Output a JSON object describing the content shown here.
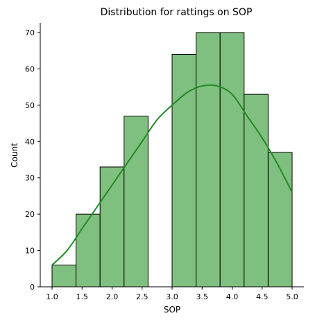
{
  "chart_data": {
    "type": "bar",
    "title": "Distribution for rattings on SOP",
    "xlabel": "SOP",
    "ylabel": "Count",
    "xlim": [
      1.0,
      5.0
    ],
    "ylim": [
      0,
      70
    ],
    "xticks": [
      1.0,
      1.5,
      2.0,
      2.5,
      3.0,
      3.5,
      4.0,
      4.5,
      5.0
    ],
    "xtick_labels": [
      "1.0",
      "1.5",
      "2.0",
      "2.5",
      "3.0",
      "3.5",
      "4.0",
      "4.5",
      "5.0"
    ],
    "yticks": [
      0,
      10,
      20,
      30,
      40,
      50,
      60,
      70
    ],
    "ytick_labels": [
      "0",
      "10",
      "20",
      "30",
      "40",
      "50",
      "60",
      "70"
    ],
    "bins": [
      {
        "x0": 1.0,
        "x1": 1.4,
        "count": 6
      },
      {
        "x0": 1.4,
        "x1": 1.8,
        "count": 20
      },
      {
        "x0": 1.8,
        "x1": 2.2,
        "count": 33
      },
      {
        "x0": 2.2,
        "x1": 2.6,
        "count": 47
      },
      {
        "x0": 2.6,
        "x1": 3.0,
        "count": 0
      },
      {
        "x0": 3.0,
        "x1": 3.4,
        "count": 64
      },
      {
        "x0": 3.4,
        "x1": 3.8,
        "count": 70
      },
      {
        "x0": 3.8,
        "x1": 4.2,
        "count": 70
      },
      {
        "x0": 4.2,
        "x1": 4.6,
        "count": 53
      },
      {
        "x0": 4.6,
        "x1": 5.0,
        "count": 37
      }
    ],
    "kde": {
      "x": [
        1.0,
        1.25,
        1.5,
        1.75,
        2.0,
        2.25,
        2.5,
        2.75,
        3.0,
        3.25,
        3.5,
        3.75,
        4.0,
        4.25,
        4.5,
        4.75,
        5.0
      ],
      "y": [
        6,
        10,
        16,
        22,
        28,
        34,
        40,
        46,
        50,
        53.5,
        55.3,
        55.3,
        53,
        47,
        41,
        34,
        26
      ]
    },
    "bar_fill": "#7fbf7f",
    "bar_edge": "#000000",
    "kde_color": "#228b22",
    "grid": false,
    "legend": "none"
  }
}
